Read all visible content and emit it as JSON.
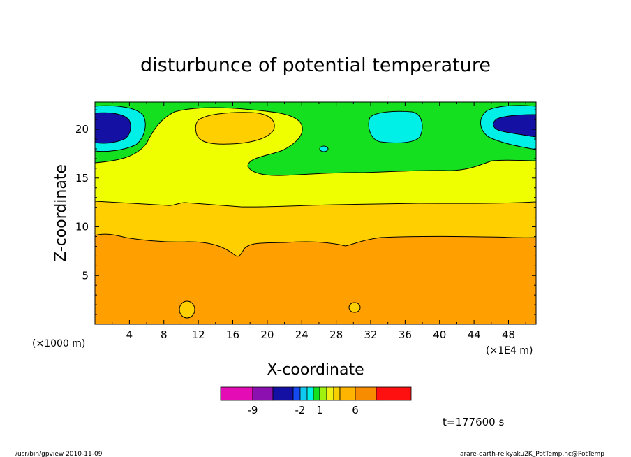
{
  "chart_data": {
    "type": "heatmap",
    "title": "disturbunce of potential temperature",
    "xlabel": "X-coordinate",
    "ylabel": "Z-coordinate",
    "x_unit_left": "(×1000 m)",
    "x_unit_right": "(×1E4 m)",
    "xlim": [
      0,
      51.2
    ],
    "ylim": [
      0,
      22.8
    ],
    "xticks": [
      4,
      8,
      12,
      16,
      20,
      24,
      28,
      32,
      36,
      40,
      44,
      48
    ],
    "yticks": [
      5,
      10,
      15,
      20
    ],
    "time_label": "t=177600 s",
    "colorbar": {
      "levels": [
        "-12",
        "-9",
        "-6",
        "-3",
        "-2",
        "-1",
        "0",
        "1",
        "2",
        "3",
        "4",
        "6",
        "8",
        "10",
        "12"
      ],
      "tick_labels": [
        {
          "label": "-9",
          "level_index": 1
        },
        {
          "label": "-2",
          "level_index": 4
        },
        {
          "label": "1",
          "level_index": 7
        },
        {
          "label": "6",
          "level_index": 11
        }
      ],
      "colors": [
        "#e40cb4",
        "#8c10b0",
        "#1410a4",
        "#1448f0",
        "#10c8f0",
        "#00f0e8",
        "#14e020",
        "#a0f010",
        "#f0f014",
        "#f8d000",
        "#ffb400",
        "#f88c00",
        "#ff1010",
        "#ff7878",
        "#ffb4c8"
      ],
      "extend": "max"
    },
    "regions": [
      {
        "level": "0 to 1",
        "color": "#14e020",
        "desc": "upper band above ~16-18"
      },
      {
        "level": "-2 to -1",
        "color": "#00f0e8",
        "desc": "blobs near x=0-5, 28-34, 44-51 at z~19-21"
      },
      {
        "level": "-3 to -2",
        "color": "#1410a4",
        "desc": "cores near x=0-4 and x=46-51 at z~20-21"
      },
      {
        "level": "1 to 2",
        "color": "#f0f014",
        "desc": "band z~12.5-16"
      },
      {
        "level": "2 to 3",
        "color": "#f8d000",
        "desc": "band z~9-12.5 and blob x~12-20, z~19-21"
      },
      {
        "level": "3 to 4",
        "color": "#ffb400",
        "desc": "lower region z~0-9"
      }
    ]
  },
  "footer": {
    "left": "/usr/bin/gpview   2010-11-09",
    "right": "arare-earth-reikyaku2K_PotTemp.nc@PotTemp"
  }
}
